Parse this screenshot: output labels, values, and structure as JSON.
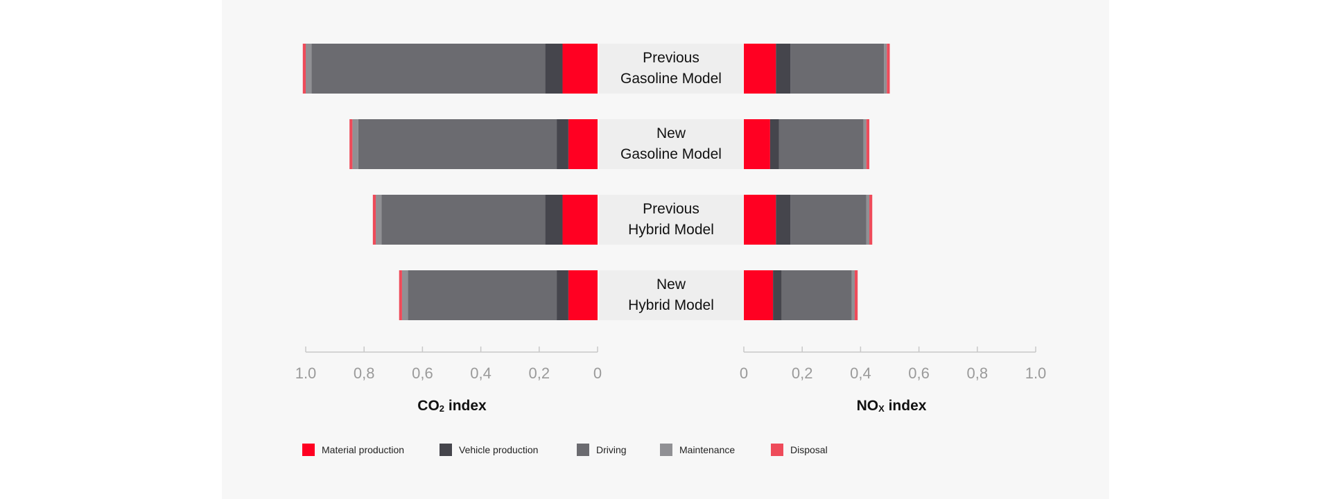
{
  "chart_data": {
    "type": "bar",
    "orientation": "horizontal-diverging",
    "categories": [
      [
        "Previous",
        "Gasoline Model"
      ],
      [
        "New",
        "Gasoline Model"
      ],
      [
        "Previous",
        "Hybrid Model"
      ],
      [
        "New",
        "Hybrid Model"
      ]
    ],
    "left_axis": {
      "title_main": "CO",
      "title_sub": "2",
      "title_rest": " index",
      "ticks": [
        "1.0",
        "0,8",
        "0,6",
        "0,4",
        "0,2",
        "0"
      ],
      "range": [
        1.0,
        0
      ]
    },
    "right_axis": {
      "title_main": "NO",
      "title_sub": "X",
      "title_rest": " index",
      "ticks": [
        "0",
        "0,2",
        "0,4",
        "0,6",
        "0,8",
        "1.0"
      ],
      "range": [
        0,
        1.0
      ]
    },
    "series": [
      {
        "name": "Material production",
        "color": "#ff0022",
        "co2": [
          0.12,
          0.1,
          0.12,
          0.1
        ],
        "nox": [
          0.11,
          0.09,
          0.11,
          0.1
        ]
      },
      {
        "name": "Vehicle production",
        "color": "#45454c",
        "co2": [
          0.06,
          0.04,
          0.06,
          0.04
        ],
        "nox": [
          0.05,
          0.03,
          0.05,
          0.03
        ]
      },
      {
        "name": "Driving",
        "color": "#6b6b70",
        "co2": [
          0.8,
          0.68,
          0.56,
          0.51
        ],
        "nox": [
          0.32,
          0.29,
          0.26,
          0.24
        ]
      },
      {
        "name": "Maintenance",
        "color": "#909094",
        "co2": [
          0.02,
          0.02,
          0.02,
          0.02
        ],
        "nox": [
          0.01,
          0.01,
          0.01,
          0.01
        ]
      },
      {
        "name": "Disposal",
        "color": "#ee4b5a",
        "co2": [
          0.01,
          0.01,
          0.01,
          0.01
        ],
        "nox": [
          0.01,
          0.01,
          0.01,
          0.01
        ]
      }
    ],
    "grid": false,
    "legend_position": "bottom-left"
  }
}
